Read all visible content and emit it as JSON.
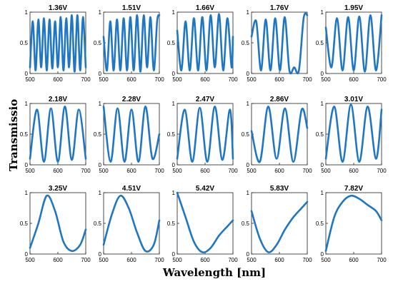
{
  "chart_data": {
    "type": "line",
    "xlabel": "Wavelength [nm]",
    "ylabel": "Transmissio",
    "xlim": [
      500,
      700
    ],
    "ylim": [
      0,
      1
    ],
    "xticks": [
      "500",
      "600",
      "700"
    ],
    "yticks": [
      "0",
      "0.5",
      "1"
    ],
    "line_color": "#1f77c4",
    "grid": false,
    "panels": [
      {
        "title": "1.36V",
        "x": [
          500,
          510,
          520,
          530,
          540,
          550,
          560,
          570,
          580,
          590,
          600,
          610,
          620,
          630,
          640,
          650,
          660,
          670,
          680,
          690,
          700
        ],
        "y": [
          0.1,
          0.85,
          0.05,
          0.88,
          0.1,
          0.9,
          0.05,
          0.88,
          0.08,
          0.85,
          0.1,
          0.92,
          0.05,
          0.9,
          0.1,
          0.95,
          0.03,
          0.95,
          0.05,
          0.92,
          0.1
        ]
      },
      {
        "title": "1.51V",
        "x": [
          500,
          512,
          524,
          536,
          548,
          560,
          572,
          584,
          596,
          608,
          620,
          632,
          644,
          656,
          668,
          680,
          692,
          700
        ],
        "y": [
          0.6,
          0.05,
          0.85,
          0.05,
          0.88,
          0.05,
          0.9,
          0.05,
          0.92,
          0.05,
          0.95,
          0.03,
          0.95,
          0.1,
          0.92,
          0.05,
          0.85,
          0.95
        ]
      },
      {
        "title": "1.66V",
        "x": [
          500,
          515,
          530,
          545,
          560,
          575,
          590,
          605,
          620,
          635,
          650,
          665,
          680,
          695,
          700
        ],
        "y": [
          0.7,
          0.05,
          0.85,
          0.05,
          0.9,
          0.05,
          0.92,
          0.05,
          0.95,
          0.1,
          0.97,
          0.05,
          0.9,
          0.1,
          0.6
        ]
      },
      {
        "title": "1.76V",
        "x": [
          500,
          517,
          534,
          551,
          568,
          585,
          602,
          619,
          636,
          653,
          670,
          687,
          700
        ],
        "y": [
          0.6,
          0.85,
          0.05,
          0.88,
          0.05,
          0.9,
          0.05,
          0.92,
          0.05,
          0.1,
          0.05,
          0.9,
          0.95
        ]
      },
      {
        "title": "1.95V",
        "x": [
          500,
          520,
          540,
          560,
          580,
          600,
          620,
          640,
          660,
          680,
          700
        ],
        "y": [
          0.75,
          0.1,
          0.9,
          0.05,
          0.92,
          0.05,
          0.93,
          0.03,
          0.95,
          0.05,
          0.95
        ]
      },
      {
        "title": "2.18V",
        "x": [
          500,
          525,
          550,
          575,
          600,
          625,
          650,
          675,
          700
        ],
        "y": [
          0.1,
          0.9,
          0.05,
          0.92,
          0.05,
          0.95,
          0.08,
          0.9,
          0.1
        ]
      },
      {
        "title": "2.28V",
        "x": [
          500,
          525,
          550,
          575,
          600,
          625,
          650,
          675,
          700
        ],
        "y": [
          0.95,
          0.05,
          0.92,
          0.05,
          0.9,
          0.05,
          0.95,
          0.1,
          0.5
        ]
      },
      {
        "title": "2.47V",
        "x": [
          500,
          527,
          554,
          581,
          608,
          635,
          662,
          689,
          700
        ],
        "y": [
          0.1,
          0.9,
          0.05,
          0.93,
          0.05,
          0.95,
          0.08,
          0.9,
          0.1
        ]
      },
      {
        "title": "2.86V",
        "x": [
          500,
          530,
          560,
          590,
          620,
          650,
          680,
          700
        ],
        "y": [
          0.55,
          0.05,
          0.95,
          0.1,
          0.92,
          0.05,
          0.9,
          0.6
        ]
      },
      {
        "title": "3.01V",
        "x": [
          500,
          530,
          560,
          590,
          620,
          650,
          680,
          700
        ],
        "y": [
          0.1,
          0.95,
          0.05,
          0.98,
          0.05,
          0.95,
          0.1,
          0.9
        ]
      },
      {
        "title": "3.25V",
        "x": [
          500,
          530,
          560,
          590,
          620,
          650,
          680,
          700
        ],
        "y": [
          0.1,
          0.5,
          0.95,
          0.7,
          0.2,
          0.05,
          0.15,
          0.4
        ]
      },
      {
        "title": "4.51V",
        "x": [
          500,
          530,
          560,
          590,
          620,
          650,
          680,
          700
        ],
        "y": [
          0.15,
          0.65,
          0.95,
          0.75,
          0.35,
          0.05,
          0.15,
          0.55
        ]
      },
      {
        "title": "5.42V",
        "x": [
          500,
          530,
          560,
          590,
          620,
          650,
          680,
          700
        ],
        "y": [
          1.0,
          0.6,
          0.2,
          0.03,
          0.1,
          0.3,
          0.45,
          0.55
        ]
      },
      {
        "title": "5.83V",
        "x": [
          500,
          530,
          560,
          590,
          620,
          650,
          680,
          700
        ],
        "y": [
          0.7,
          0.25,
          0.03,
          0.15,
          0.4,
          0.6,
          0.75,
          0.85
        ]
      },
      {
        "title": "7.82V",
        "x": [
          500,
          530,
          560,
          590,
          620,
          650,
          680,
          700
        ],
        "y": [
          0.05,
          0.6,
          0.85,
          0.95,
          0.9,
          0.8,
          0.7,
          0.55
        ]
      }
    ]
  }
}
